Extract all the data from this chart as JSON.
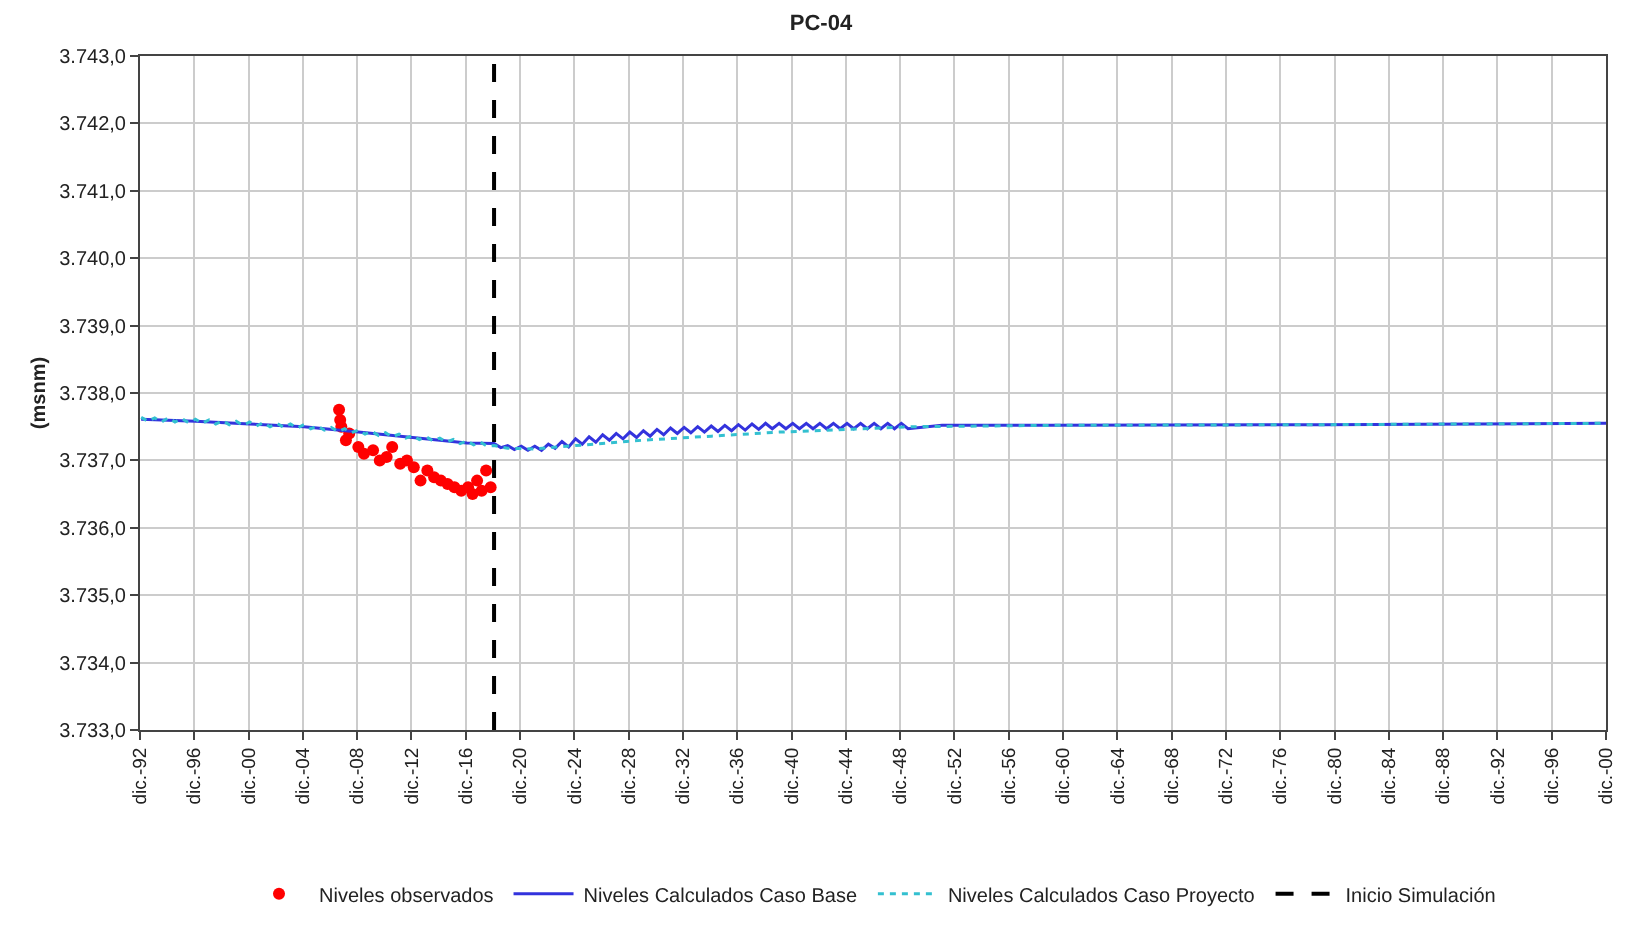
{
  "chart_data": {
    "type": "line",
    "title": "PC-04",
    "ylabel": "(msnm)",
    "xlim": [
      "1992-12-01",
      "2100-12-01"
    ],
    "xticks": [
      {
        "value": "1992-12-01",
        "label": "dic.-92"
      },
      {
        "value": "1996-12-01",
        "label": "dic.-96"
      },
      {
        "value": "2000-12-01",
        "label": "dic.-00"
      },
      {
        "value": "2004-12-01",
        "label": "dic.-04"
      },
      {
        "value": "2008-12-01",
        "label": "dic.-08"
      },
      {
        "value": "2012-12-01",
        "label": "dic.-12"
      },
      {
        "value": "2016-12-01",
        "label": "dic.-16"
      },
      {
        "value": "2020-12-01",
        "label": "dic.-20"
      },
      {
        "value": "2024-12-01",
        "label": "dic.-24"
      },
      {
        "value": "2028-12-01",
        "label": "dic.-28"
      },
      {
        "value": "2032-12-01",
        "label": "dic.-32"
      },
      {
        "value": "2036-12-01",
        "label": "dic.-36"
      },
      {
        "value": "2040-12-01",
        "label": "dic.-40"
      },
      {
        "value": "2044-12-01",
        "label": "dic.-44"
      },
      {
        "value": "2048-12-01",
        "label": "dic.-48"
      },
      {
        "value": "2052-12-01",
        "label": "dic.-52"
      },
      {
        "value": "2056-12-01",
        "label": "dic.-56"
      },
      {
        "value": "2060-12-01",
        "label": "dic.-60"
      },
      {
        "value": "2064-12-01",
        "label": "dic.-64"
      },
      {
        "value": "2068-12-01",
        "label": "dic.-68"
      },
      {
        "value": "2072-12-01",
        "label": "dic.-72"
      },
      {
        "value": "2076-12-01",
        "label": "dic.-76"
      },
      {
        "value": "2080-12-01",
        "label": "dic.-80"
      },
      {
        "value": "2084-12-01",
        "label": "dic.-84"
      },
      {
        "value": "2088-12-01",
        "label": "dic.-88"
      },
      {
        "value": "2092-12-01",
        "label": "dic.-92"
      },
      {
        "value": "2096-12-01",
        "label": "dic.-96"
      },
      {
        "value": "2100-12-01",
        "label": "dic.-00"
      }
    ],
    "ylim": [
      3733,
      3743
    ],
    "yticks": [
      {
        "value": 3733,
        "label": "3.733,0"
      },
      {
        "value": 3734,
        "label": "3.734,0"
      },
      {
        "value": 3735,
        "label": "3.735,0"
      },
      {
        "value": 3736,
        "label": "3.736,0"
      },
      {
        "value": 3737,
        "label": "3.737,0"
      },
      {
        "value": 3738,
        "label": "3.738,0"
      },
      {
        "value": 3739,
        "label": "3.739,0"
      },
      {
        "value": 3740,
        "label": "3.740,0"
      },
      {
        "value": 3741,
        "label": "3.741,0"
      },
      {
        "value": 3742,
        "label": "3.742,0"
      },
      {
        "value": 3743,
        "label": "3.743,0"
      }
    ],
    "grid": true,
    "legend": "bottom",
    "series": [
      {
        "name": "Niveles observados",
        "type": "scatter",
        "marker": "circle",
        "color": "#ff0000",
        "x": [
          "2007-08",
          "2007-09",
          "2007-10",
          "2008-02",
          "2008-05",
          "2009-01",
          "2009-06",
          "2010-02",
          "2010-08",
          "2011-02",
          "2011-07",
          "2012-02",
          "2012-08",
          "2013-02",
          "2013-08",
          "2014-02",
          "2014-08",
          "2015-02",
          "2015-08",
          "2016-02",
          "2016-08",
          "2017-02",
          "2017-06",
          "2017-10",
          "2018-02",
          "2018-06",
          "2018-10"
        ],
        "values": [
          3737.75,
          3737.6,
          3737.5,
          3737.3,
          3737.4,
          3737.2,
          3737.1,
          3737.15,
          3737.0,
          3737.05,
          3737.2,
          3736.95,
          3737.0,
          3736.9,
          3736.7,
          3736.85,
          3736.75,
          3736.7,
          3736.65,
          3736.6,
          3736.55,
          3736.6,
          3736.5,
          3736.7,
          3736.55,
          3736.85,
          3736.6
        ]
      },
      {
        "name": "Niveles Calculados Caso Base",
        "line_style": "solid",
        "color": "#3333dd",
        "x": [
          "1993-01",
          "1997-01",
          "2001-01",
          "2005-01",
          "2009-01",
          "2013-01",
          "2017-01",
          "2019-01",
          "2019-07",
          "2020-01",
          "2020-07",
          "2021-01",
          "2021-07",
          "2022-01",
          "2022-07",
          "2023-01",
          "2023-07",
          "2024-01",
          "2024-07",
          "2025-01",
          "2025-07",
          "2026-01",
          "2026-07",
          "2027-01",
          "2027-07",
          "2028-01",
          "2028-07",
          "2029-01",
          "2029-07",
          "2030-01",
          "2030-07",
          "2031-01",
          "2031-07",
          "2032-01",
          "2032-07",
          "2033-01",
          "2033-07",
          "2034-01",
          "2034-07",
          "2035-01",
          "2035-07",
          "2036-01",
          "2036-07",
          "2037-01",
          "2037-07",
          "2038-01",
          "2038-07",
          "2039-01",
          "2039-07",
          "2040-01",
          "2040-07",
          "2041-01",
          "2041-07",
          "2042-01",
          "2042-07",
          "2043-01",
          "2043-07",
          "2044-01",
          "2044-07",
          "2045-01",
          "2045-07",
          "2046-01",
          "2046-07",
          "2047-01",
          "2047-07",
          "2048-01",
          "2048-07",
          "2049-01",
          "2049-07",
          "2052-01",
          "2060-01",
          "2080-01",
          "2100-12"
        ],
        "values": [
          3737.61,
          3737.58,
          3737.54,
          3737.5,
          3737.42,
          3737.34,
          3737.26,
          3737.25,
          3737.19,
          3737.22,
          3737.16,
          3737.21,
          3737.15,
          3737.21,
          3737.15,
          3737.24,
          3737.18,
          3737.28,
          3737.2,
          3737.32,
          3737.24,
          3737.35,
          3737.27,
          3737.38,
          3737.3,
          3737.4,
          3737.32,
          3737.42,
          3737.34,
          3737.44,
          3737.36,
          3737.46,
          3737.38,
          3737.48,
          3737.4,
          3737.49,
          3737.41,
          3737.5,
          3737.42,
          3737.51,
          3737.43,
          3737.52,
          3737.44,
          3737.53,
          3737.45,
          3737.54,
          3737.46,
          3737.55,
          3737.47,
          3737.55,
          3737.47,
          3737.55,
          3737.47,
          3737.55,
          3737.47,
          3737.55,
          3737.47,
          3737.55,
          3737.47,
          3737.55,
          3737.47,
          3737.55,
          3737.47,
          3737.55,
          3737.47,
          3737.55,
          3737.47,
          3737.55,
          3737.47,
          3737.52,
          3737.52,
          3737.53,
          3737.55
        ]
      },
      {
        "name": "Niveles Calculados Caso Proyecto",
        "line_style": "dotted",
        "color": "#33c0d0",
        "x": [
          "1993-01",
          "1993-07",
          "1994-01",
          "1994-07",
          "1995-01",
          "1995-07",
          "1996-01",
          "1996-07",
          "1997-01",
          "1997-07",
          "1998-01",
          "1998-07",
          "1999-01",
          "1999-07",
          "2000-01",
          "2000-07",
          "2001-01",
          "2001-07",
          "2002-01",
          "2002-07",
          "2003-01",
          "2003-07",
          "2004-01",
          "2004-07",
          "2005-01",
          "2005-07",
          "2006-01",
          "2006-07",
          "2007-01",
          "2007-07",
          "2008-01",
          "2008-07",
          "2009-01",
          "2009-07",
          "2010-01",
          "2010-07",
          "2011-01",
          "2011-07",
          "2012-01",
          "2012-07",
          "2013-01",
          "2013-07",
          "2014-01",
          "2014-07",
          "2015-01",
          "2015-07",
          "2016-01",
          "2016-07",
          "2017-01",
          "2017-07",
          "2018-01",
          "2018-07",
          "2019-01",
          "2020-01",
          "2022-01",
          "2025-01",
          "2030-01",
          "2035-01",
          "2040-01",
          "2045-01",
          "2050-01",
          "2060-01",
          "2080-01",
          "2100-12"
        ],
        "values": [
          3737.64,
          3737.58,
          3737.63,
          3737.57,
          3737.63,
          3737.57,
          3737.62,
          3737.56,
          3737.61,
          3737.55,
          3737.6,
          3737.54,
          3737.59,
          3737.53,
          3737.58,
          3737.52,
          3737.57,
          3737.51,
          3737.56,
          3737.5,
          3737.55,
          3737.49,
          3737.54,
          3737.48,
          3737.53,
          3737.47,
          3737.51,
          3737.45,
          3737.49,
          3737.43,
          3737.47,
          3737.41,
          3737.45,
          3737.39,
          3737.43,
          3737.37,
          3737.41,
          3737.35,
          3737.39,
          3737.33,
          3737.37,
          3737.31,
          3737.35,
          3737.29,
          3737.33,
          3737.27,
          3737.31,
          3737.25,
          3737.29,
          3737.23,
          3737.27,
          3737.21,
          3737.22,
          3737.18,
          3737.17,
          3737.22,
          3737.3,
          3737.36,
          3737.42,
          3737.46,
          3737.5,
          3737.52,
          3737.53,
          3737.55
        ]
      }
    ],
    "ref_lines": [
      {
        "axis": "x",
        "value": "2019-01",
        "label": "Inicio Simulación",
        "color": "#000000",
        "line_style": "dashed"
      }
    ]
  }
}
